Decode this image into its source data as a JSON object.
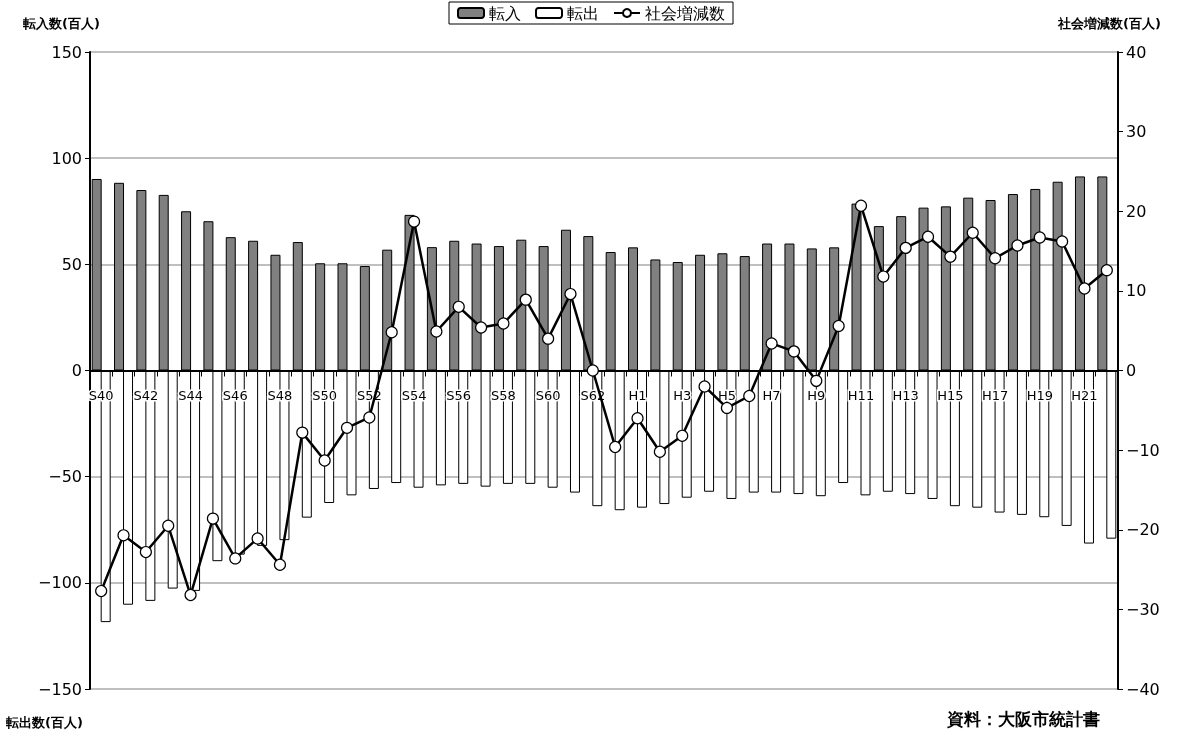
{
  "chart_data": {
    "type": "bar",
    "categories": [
      "S40",
      null,
      "S42",
      null,
      "S44",
      null,
      "S46",
      null,
      "S48",
      null,
      "S50",
      null,
      "S52",
      null,
      "S54",
      null,
      "S56",
      null,
      "S58",
      null,
      "S60",
      null,
      "S62",
      null,
      "H1",
      null,
      "H3",
      null,
      "H5",
      null,
      "H7",
      null,
      "H9",
      null,
      "H11",
      null,
      "H13",
      null,
      "H15",
      null,
      "H17",
      null,
      "H19",
      null,
      "H21",
      null
    ],
    "series": [
      {
        "name": "転入",
        "color": "#808080",
        "values": [
          90.2,
          88.4,
          85,
          82.7,
          75,
          70.3,
          62.8,
          61.1,
          54.5,
          60.5,
          50.5,
          50.5,
          49.2,
          56.9,
          73.3,
          58.1,
          61.1,
          59.8,
          58.6,
          61.6,
          58.6,
          66.3,
          63.3,
          55.8,
          58,
          52.3,
          51.1,
          54.5,
          55.2,
          53.9,
          59.8,
          59.8,
          57.5,
          58,
          78.6,
          68,
          72.7,
          76.7,
          77.3,
          81.4,
          80.3,
          83.1,
          85.5,
          88.9,
          91.4,
          91.4
        ]
      },
      {
        "name": "転出",
        "color": "#ffffff",
        "values": [
          -118.5,
          -110.3,
          -108.5,
          -102.7,
          -103.8,
          -89.8,
          -86.7,
          -82.6,
          -79.9,
          -69.3,
          -62.4,
          -58.8,
          -55.8,
          -53,
          -55.2,
          -54.1,
          -53.4,
          -54.7,
          -53.4,
          -53.4,
          -55.2,
          -57.5,
          -63.9,
          -65.8,
          -64.6,
          -62.9,
          -59.9,
          -57.1,
          -60.5,
          -57.5,
          -57.5,
          -58.2,
          -59.2,
          -53,
          -58.8,
          -57.1,
          -58.2,
          -60.5,
          -63.9,
          -64.6,
          -66.9,
          -68,
          -69.1,
          -73.2,
          -81.5,
          -79.2
        ]
      },
      {
        "name": "社会増減数",
        "type": "line",
        "axis": "y2",
        "color": "#000000",
        "values": [
          -27.7,
          -20.7,
          -22.8,
          -19.5,
          -28.2,
          -18.6,
          -23.6,
          -21.1,
          -24.4,
          -7.8,
          -11.3,
          -7.2,
          -5.9,
          4.8,
          18.7,
          4.9,
          8,
          5.4,
          5.9,
          8.9,
          4,
          9.6,
          0,
          -9.6,
          -6,
          -10.2,
          -8.2,
          -2,
          -4.7,
          -3.2,
          3.4,
          2.4,
          -1.3,
          5.6,
          20.7,
          11.8,
          15.4,
          16.8,
          14.3,
          17.3,
          14.1,
          15.7,
          16.7,
          16.2,
          10.3,
          12.6
        ]
      }
    ],
    "ylabel": "転入数(百人)",
    "y2label": "社会増減数(百人)",
    "ylim": [
      -150,
      150
    ],
    "yticks": [
      -150,
      -100,
      -50,
      0,
      50,
      100,
      150
    ],
    "y2lim": [
      -40,
      40
    ],
    "y2ticks": [
      -40,
      -30,
      -20,
      -10,
      0,
      10,
      20,
      30,
      40
    ],
    "annotations": [
      "転出数(百人)",
      "資料：大阪市統計書"
    ],
    "grid": "y",
    "legend": "top",
    "marker": "circle",
    "line_style": "solid"
  }
}
